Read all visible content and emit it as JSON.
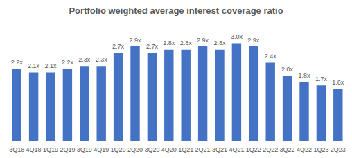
{
  "chart_data": {
    "type": "bar",
    "title": "Portfolio weighted average interest coverage ratio",
    "categories": [
      "3Q18",
      "4Q18",
      "1Q19",
      "2Q19",
      "3Q19",
      "4Q19",
      "1Q20",
      "2Q20",
      "3Q20",
      "4Q20",
      "1Q21",
      "2Q21",
      "3Q21",
      "4Q21",
      "1Q22",
      "2Q22",
      "3Q22",
      "4Q22",
      "1Q23",
      "2Q23"
    ],
    "values": [
      2.2,
      2.1,
      2.1,
      2.2,
      2.3,
      2.3,
      2.7,
      2.9,
      2.7,
      2.8,
      2.8,
      2.9,
      2.8,
      3.0,
      2.9,
      2.4,
      2.0,
      1.8,
      1.7,
      1.6
    ],
    "value_labels": [
      "2.2x",
      "2.1x",
      "2.1x",
      "2.2x",
      "2.3x",
      "2.3x",
      "2.7x",
      "2.9x",
      "2.7x",
      "2.8x",
      "2.8x",
      "2.9x",
      "2.8x",
      "3.0x",
      "2.9x",
      "2.4x",
      "2.0x",
      "1.8x",
      "1.7x",
      "1.6x"
    ],
    "color": "#4472c4",
    "ylim": [
      0,
      3.2
    ],
    "grid": false,
    "data_labels": true,
    "tick_labels": "x"
  }
}
